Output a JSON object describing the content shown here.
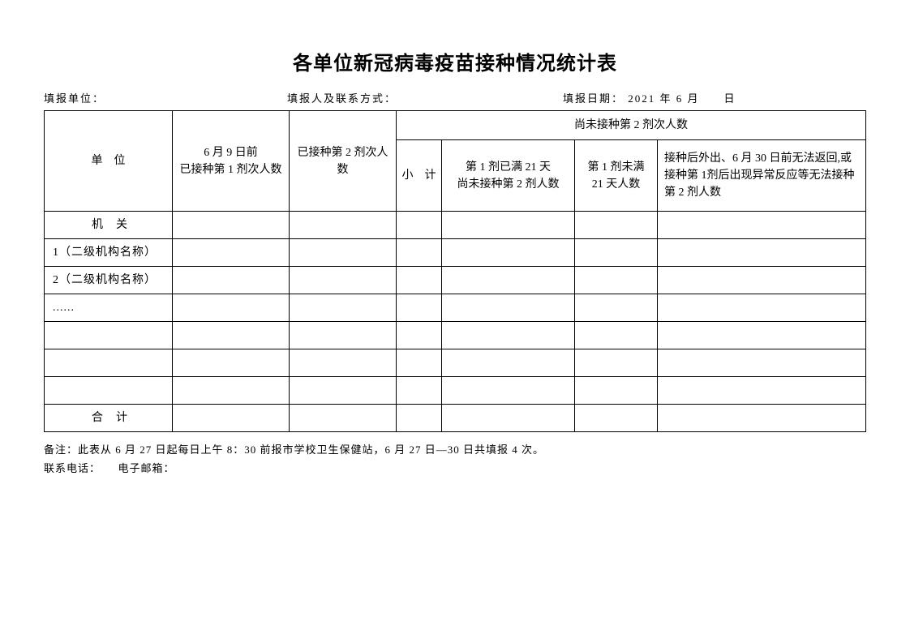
{
  "title": "各单位新冠病毒疫苗接种情况统计表",
  "meta": {
    "unit_label": "填报单位：",
    "reporter_label": "填报人及联系方式：",
    "date_label": "填报日期：",
    "date_value": "2021 年 6 月　　日"
  },
  "headers": {
    "unit": "单　位",
    "dose1": "6 月 9 日前\n已接种第 1 剂次人数",
    "dose2": "已接种第 2 剂次人　数",
    "not_yet_group": "尚未接种第 2 剂次人数",
    "subtotal": "小　计",
    "over21": "第 1 剂已满 21 天\n尚未接种第 2 剂人数",
    "under21": "第 1 剂未满\n21 天人数",
    "unable": "接种后外出、6 月 30 日前无法返回,或接种第 1剂后出现异常反应等无法接种第 2 剂人数"
  },
  "rows": [
    {
      "label": "机　关",
      "center": true
    },
    {
      "label": "1（二级机构名称）",
      "center": false
    },
    {
      "label": "2（二级机构名称）",
      "center": false
    },
    {
      "label": "......",
      "center": false
    },
    {
      "label": "",
      "center": false
    },
    {
      "label": "",
      "center": false
    },
    {
      "label": "",
      "center": false
    },
    {
      "label": "合　计",
      "center": true
    }
  ],
  "footer": {
    "note": "备注：此表从 6 月 27 日起每日上午 8：30 前报市学校卫生保健站，6 月 27 日—30 日共填报 4 次。",
    "contact": "联系电话：　　电子邮箱："
  },
  "style": {
    "background_color": "#ffffff",
    "border_color": "#000000",
    "text_color": "#000000",
    "title_fontsize": 24,
    "body_fontsize": 14,
    "meta_fontsize": 13,
    "font_family": "SimSun"
  }
}
